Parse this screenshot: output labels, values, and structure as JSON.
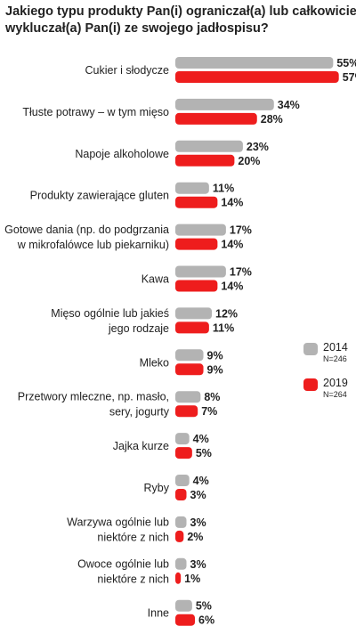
{
  "title_lines": [
    "Jakiego typu produkty Pan(i) ograniczał(a) lub całkowicie",
    "wykluczał(a) Pan(i) ze swojego jadłospisu?"
  ],
  "legend": [
    {
      "year": "2014",
      "n": "N=246",
      "color": "#b3b3b3"
    },
    {
      "year": "2019",
      "n": "N=264",
      "color": "#ee1d1d"
    }
  ],
  "chart_data": {
    "type": "bar",
    "orientation": "horizontal",
    "title": "Jakiego typu produkty Pan(i) ograniczał(a) lub całkowicie wykluczał(a) Pan(i) ze swojego jadłospisu?",
    "value_suffix": "%",
    "categories": [
      [
        "Cukier i słodycze"
      ],
      [
        "Tłuste potrawy – w tym mięso"
      ],
      [
        "Napoje alkoholowe"
      ],
      [
        "Produkty zawierające gluten"
      ],
      [
        "Gotowe dania (np. do podgrzania",
        "w mikrofalówce lub piekarniku)"
      ],
      [
        "Kawa"
      ],
      [
        "Mięso ogólnie lub jakieś",
        "jego rodzaje"
      ],
      [
        "Mleko"
      ],
      [
        "Przetwory mleczne, np. masło,",
        "sery, jogurty"
      ],
      [
        "Jajka kurze"
      ],
      [
        "Ryby"
      ],
      [
        "Warzywa ogólnie lub",
        "niektóre z nich"
      ],
      [
        "Owoce ogólnie lub",
        "niektóre z nich"
      ],
      [
        "Inne"
      ]
    ],
    "series": [
      {
        "name": "2014",
        "color": "#b3b3b3",
        "values": [
          55,
          34,
          23,
          11,
          17,
          17,
          12,
          9,
          8,
          4,
          4,
          3,
          3,
          5
        ]
      },
      {
        "name": "2019",
        "color": "#ee1d1d",
        "values": [
          57,
          28,
          20,
          14,
          14,
          14,
          11,
          9,
          7,
          5,
          3,
          2,
          1,
          6
        ]
      }
    ],
    "xlim": [
      0,
      60
    ],
    "grid": false,
    "legend_position": "right"
  }
}
